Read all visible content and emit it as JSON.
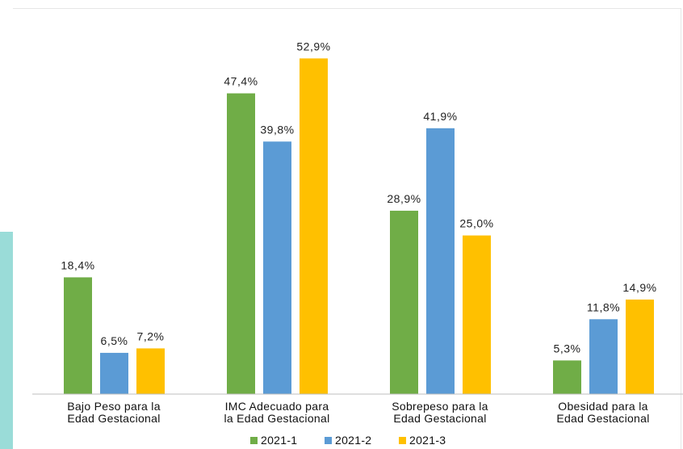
{
  "chart_data": {
    "type": "bar",
    "categories": [
      [
        "Bajo Peso para la",
        "Edad Gestacional"
      ],
      [
        "IMC Adecuado para",
        "la Edad Gestacional"
      ],
      [
        "Sobrepeso para la",
        "Edad Gestacional"
      ],
      [
        "Obesidad para la",
        "Edad Gestacional"
      ]
    ],
    "series": [
      {
        "name": "2021-1",
        "color": "#70ad47",
        "values": [
          18.4,
          47.4,
          28.9,
          5.3
        ],
        "labels": [
          "18,4%",
          "47,4%",
          "28,9%",
          "5,3%"
        ]
      },
      {
        "name": "2021-2",
        "color": "#5b9bd5",
        "values": [
          6.5,
          39.8,
          41.9,
          11.8
        ],
        "labels": [
          "6,5%",
          "39,8%",
          "41,9%",
          "11,8%"
        ]
      },
      {
        "name": "2021-3",
        "color": "#ffc000",
        "values": [
          7.2,
          52.9,
          25.0,
          14.9
        ],
        "labels": [
          "7,2%",
          "52,9%",
          "25,0%",
          "14,9%"
        ]
      }
    ],
    "ylim": [
      0,
      56
    ],
    "grid": false,
    "legend": "bottom"
  }
}
